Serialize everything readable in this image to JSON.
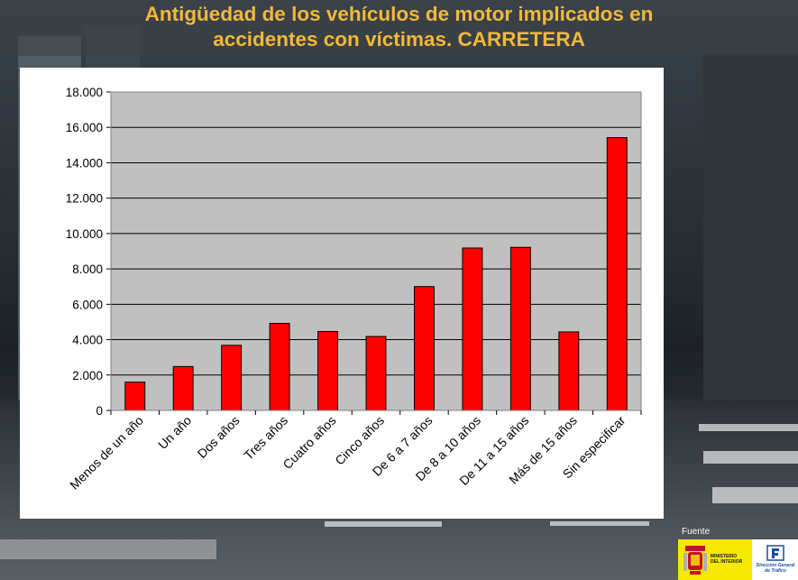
{
  "title": {
    "line1": "Antigüedad de los vehículos de motor implicados en",
    "line2": "accidentes con víctimas. CARRETERA"
  },
  "chart_data": {
    "type": "bar",
    "categories": [
      "Menos de un año",
      "Un año",
      "Dos años",
      "Tres años",
      "Cuatro años",
      "Cinco años",
      "De 6 a 7 años",
      "De 8 a 10 años",
      "De 11 a 15 años",
      "Más de 15 años",
      "Sin especificar"
    ],
    "values": [
      1600,
      2480,
      3680,
      4920,
      4460,
      4180,
      7000,
      9180,
      9220,
      4440,
      15420
    ],
    "ylim": [
      0,
      18000
    ],
    "yticks": [
      0,
      2000,
      4000,
      6000,
      8000,
      10000,
      12000,
      14000,
      16000,
      18000
    ],
    "ytick_labels": [
      "0",
      "2.000",
      "4.000",
      "6.000",
      "8.000",
      "10.000",
      "12.000",
      "14.000",
      "16.000",
      "18.000"
    ],
    "grid": true,
    "bar_color": "#ff0000",
    "plot_bg": "#c0c0c0",
    "xlabel": "",
    "ylabel": ""
  },
  "footer": {
    "source_label": "Fuente",
    "ministry_line1": "MINISTERIO",
    "ministry_line2": "DEL INTERIOR",
    "dgt_line1": "Dirección General",
    "dgt_line2": "de Tráfico"
  }
}
